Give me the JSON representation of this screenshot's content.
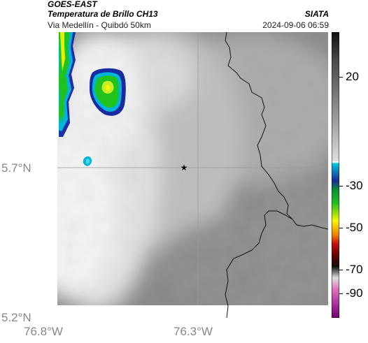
{
  "header": {
    "satellite": "GOES-EAST",
    "product": "Temperatura de Brillo CH13",
    "region": "Via Medellín - Quibdó 50km",
    "agency": "SIATA",
    "timestamp": "2024-09-06 06:59"
  },
  "axes": {
    "y_ticks": [
      "5.7°N",
      "5.2°N"
    ],
    "x_ticks": [
      "76.8°W",
      "76.3°W"
    ]
  },
  "colorbar": {
    "ticks": [
      "20",
      "-30",
      "-50",
      "-70",
      "-90"
    ]
  },
  "colors": {
    "cloud_warm": "#7a7a7a",
    "cloud_cold": "#f2f2f2",
    "convective_green": "#22c21e",
    "convective_yellow": "#f6f600",
    "convective_cyan": "#00b5d8"
  },
  "icons": {
    "marker": "star-icon"
  }
}
